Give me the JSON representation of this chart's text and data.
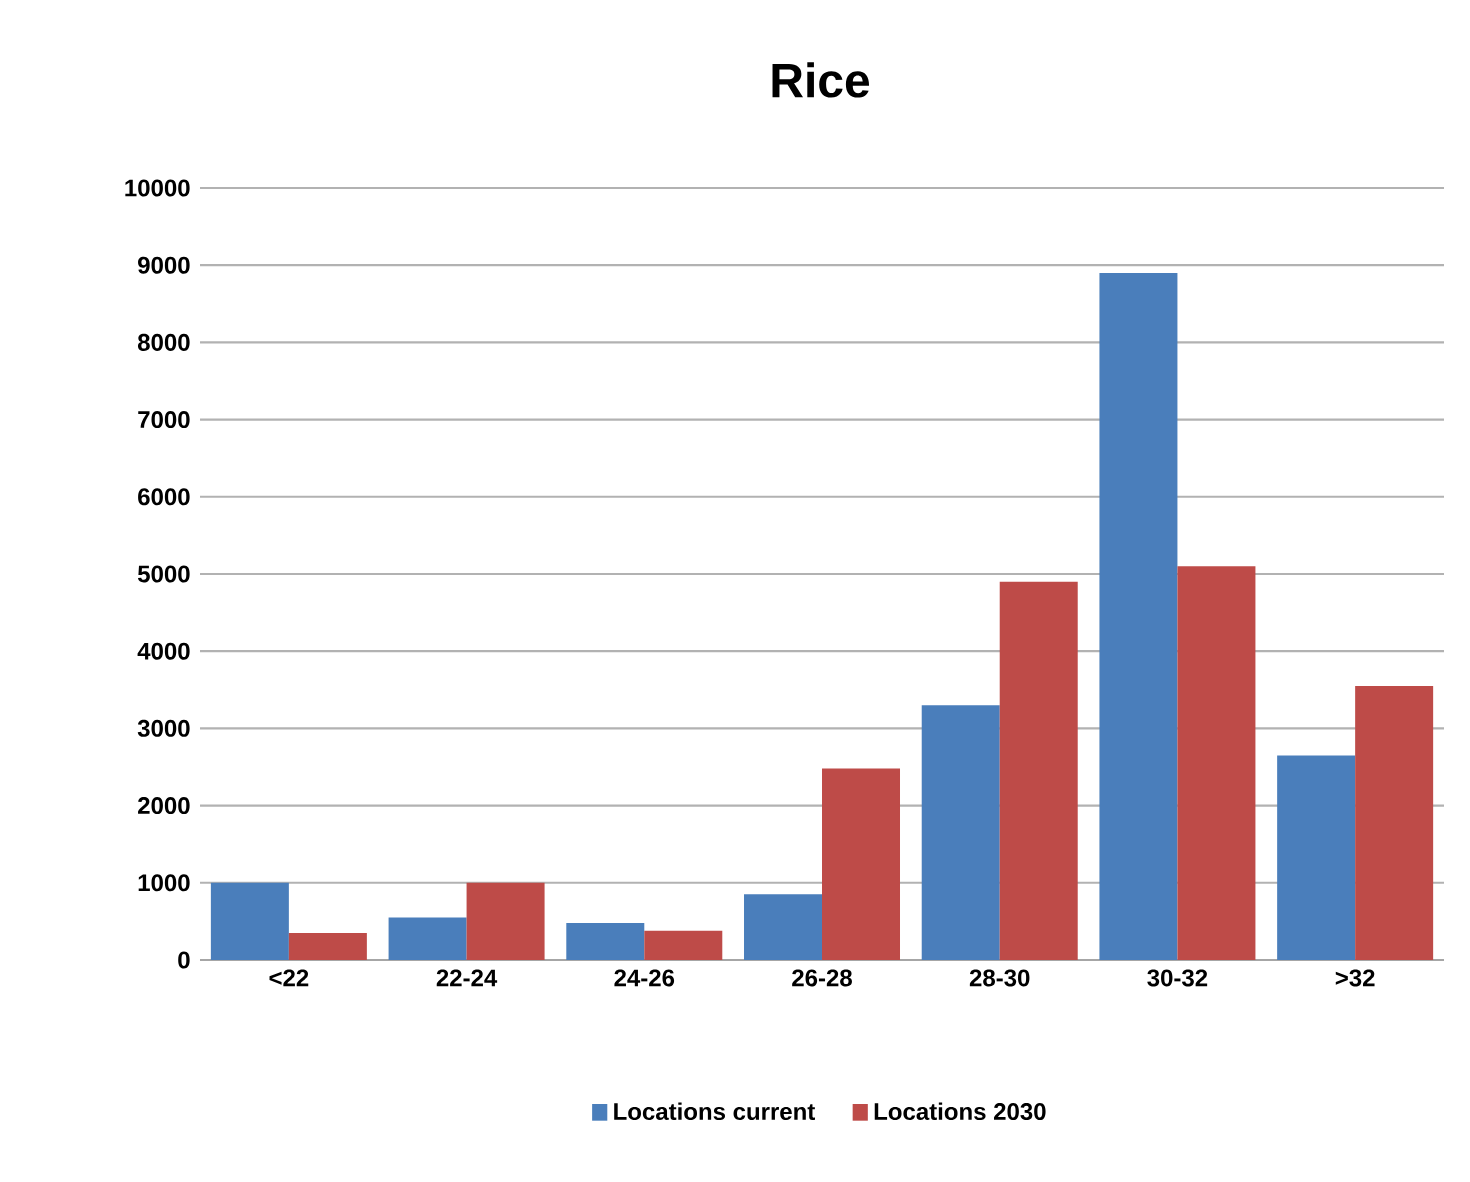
{
  "chart_data": {
    "type": "bar",
    "title": "Rice",
    "categories": [
      "<22",
      "22-24",
      "24-26",
      "26-28",
      "28-30",
      "30-32",
      ">32"
    ],
    "series": [
      {
        "name": "Locations current",
        "color": "#4a7ebb",
        "values": [
          1000,
          550,
          480,
          850,
          3300,
          8900,
          2650
        ]
      },
      {
        "name": "Locations 2030",
        "color": "#be4b48",
        "values": [
          350,
          1000,
          380,
          2480,
          4900,
          5100,
          3550
        ]
      }
    ],
    "ylim": [
      0,
      10000
    ],
    "yticks": [
      0,
      1000,
      2000,
      3000,
      4000,
      5000,
      6000,
      7000,
      8000,
      9000,
      10000
    ],
    "grid": "y",
    "legend": "bottom"
  }
}
